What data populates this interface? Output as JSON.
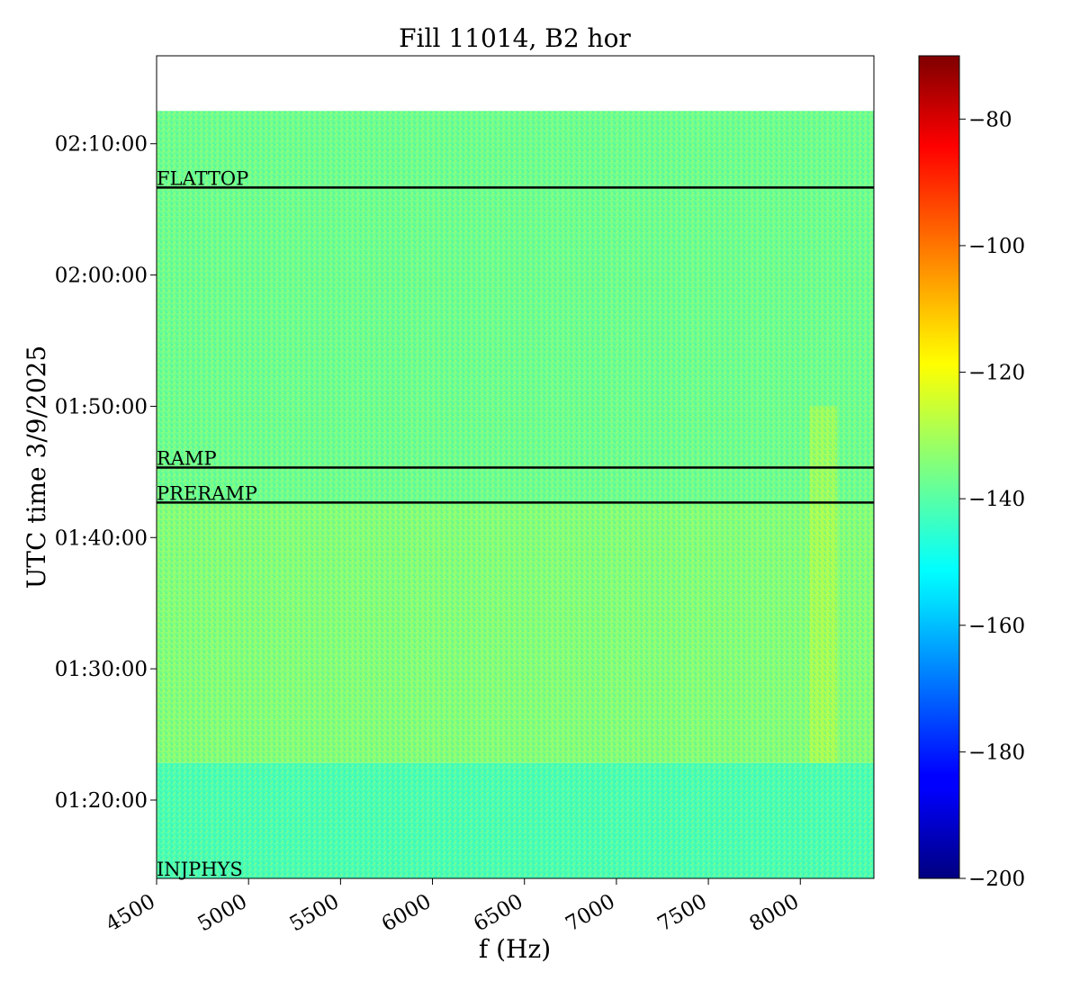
{
  "chart_data": {
    "type": "heatmap",
    "title": "Fill 11014, B2 hor",
    "xlabel": "f (Hz)",
    "ylabel": "UTC time 3/9/2025",
    "x_range_hz": [
      4500,
      8400
    ],
    "x_ticks": [
      {
        "value": 4500,
        "label": "4500"
      },
      {
        "value": 5000,
        "label": "5000"
      },
      {
        "value": 5500,
        "label": "5500"
      },
      {
        "value": 6000,
        "label": "6000"
      },
      {
        "value": 6500,
        "label": "6500"
      },
      {
        "value": 7000,
        "label": "7000"
      },
      {
        "value": 7500,
        "label": "7500"
      },
      {
        "value": 8000,
        "label": "8000"
      }
    ],
    "y_time_range": [
      "01:14:02",
      "02:16:42"
    ],
    "data_time_end": "02:12:30",
    "y_ticks": [
      {
        "value": "01:20:00",
        "label": "01:20:00"
      },
      {
        "value": "01:30:00",
        "label": "01:30:00"
      },
      {
        "value": "01:40:00",
        "label": "01:40:00"
      },
      {
        "value": "01:50:00",
        "label": "01:50:00"
      },
      {
        "value": "02:00:00",
        "label": "02:00:00"
      },
      {
        "value": "02:10:00",
        "label": "02:10:00"
      }
    ],
    "colorbar": {
      "colormap": "jet",
      "range": [
        -200,
        -70
      ],
      "ticks": [
        {
          "value": -200,
          "label": "−200"
        },
        {
          "value": -180,
          "label": "−180"
        },
        {
          "value": -160,
          "label": "−160"
        },
        {
          "value": -140,
          "label": "−140"
        },
        {
          "value": -120,
          "label": "−120"
        },
        {
          "value": -100,
          "label": "−100"
        },
        {
          "value": -80,
          "label": "−80"
        }
      ]
    },
    "phase_markers": [
      {
        "label": "INJPHYS",
        "time": "01:14:02",
        "draw_line": false
      },
      {
        "label": "PRERAMP",
        "time": "01:42:40",
        "draw_line": true
      },
      {
        "label": "RAMP",
        "time": "01:45:20",
        "draw_line": true
      },
      {
        "label": "FLATTOP",
        "time": "02:06:40",
        "draw_line": true
      }
    ],
    "regions": [
      {
        "time_from": "01:14:02",
        "time_to": "01:22:50",
        "level_db": -142
      },
      {
        "time_from": "01:22:50",
        "time_to": "01:42:40",
        "level_db": -134
      },
      {
        "time_from": "01:42:40",
        "time_to": "02:12:30",
        "level_db": -137
      }
    ],
    "hotspot": {
      "freq_from": 8050,
      "freq_to": 8200,
      "time_from": "01:22:50",
      "time_to": "01:50:00",
      "level_db": -126
    },
    "grid": false
  }
}
